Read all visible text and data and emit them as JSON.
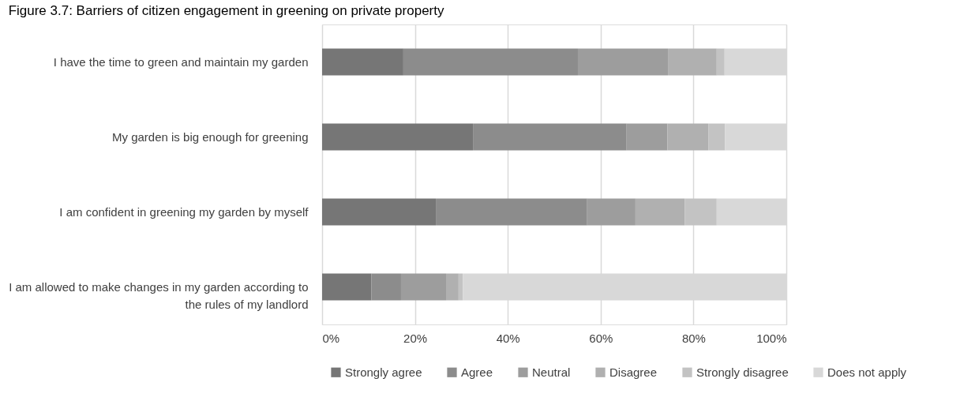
{
  "chart_data": {
    "type": "bar",
    "orientation": "horizontal",
    "stacked": true,
    "title": "Figure 3.7: Barriers of citizen engagement in greening on private property",
    "categories": [
      "I have the time to green and maintain my garden",
      "My garden is big enough for greening",
      "I am confident in greening my garden by myself",
      "I am allowed to make changes in my garden according to the rules of my landlord"
    ],
    "series": [
      {
        "name": "Strongly agree",
        "color": "#767676",
        "values": [
          17.5,
          32.5,
          24.5,
          10.6
        ]
      },
      {
        "name": "Agree",
        "color": "#8c8c8c",
        "values": [
          37.6,
          33.1,
          32.6,
          6.4
        ]
      },
      {
        "name": "Neutral",
        "color": "#9d9d9d",
        "values": [
          19.4,
          8.8,
          10.4,
          9.7
        ]
      },
      {
        "name": "Disagree",
        "color": "#b0b0b0",
        "values": [
          10.5,
          8.8,
          10.6,
          2.7
        ]
      },
      {
        "name": "Strongly disagree",
        "color": "#c3c3c3",
        "values": [
          1.7,
          3.6,
          6.9,
          0.9
        ]
      },
      {
        "name": "Does not apply",
        "color": "#d8d8d8",
        "values": [
          13.3,
          13.2,
          15.0,
          69.7
        ]
      }
    ],
    "xlim": [
      0,
      100
    ],
    "xticks": [
      {
        "value": 0,
        "label": "0%"
      },
      {
        "value": 20,
        "label": "20%"
      },
      {
        "value": 40,
        "label": "40%"
      },
      {
        "value": 60,
        "label": "60%"
      },
      {
        "value": 80,
        "label": "80%"
      },
      {
        "value": 100,
        "label": "100%"
      }
    ],
    "grid": "x",
    "legend": "bottom"
  }
}
